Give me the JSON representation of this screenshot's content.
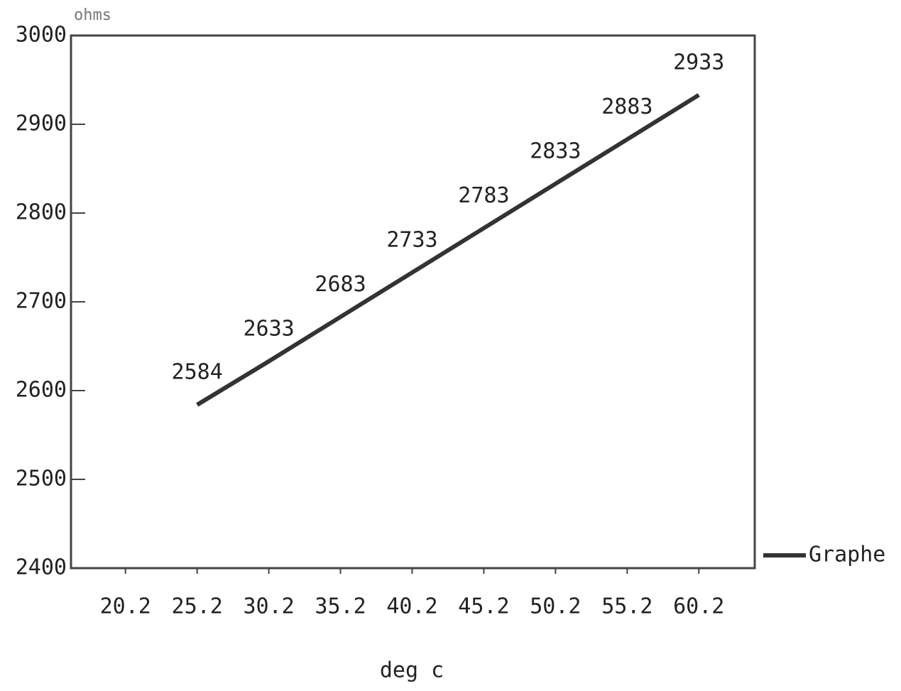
{
  "chart_data": {
    "type": "line",
    "y_label": "ohms",
    "x_label": "deg c",
    "x": [
      25.2,
      30.2,
      35.2,
      40.2,
      45.2,
      50.2,
      55.2,
      60.2
    ],
    "series": [
      {
        "name": "Graphe",
        "color": "#333333",
        "values": [
          2584,
          2633,
          2683,
          2733,
          2783,
          2833,
          2883,
          2933
        ]
      }
    ],
    "xlim": [
      16.4,
      64.1
    ],
    "xticks": [
      20.2,
      25.2,
      30.2,
      35.2,
      40.2,
      45.2,
      50.2,
      55.2,
      60.2
    ],
    "ylim": [
      2400,
      3000
    ],
    "yticks": [
      2400,
      2500,
      2600,
      2700,
      2800,
      2900,
      3000
    ],
    "legend": "right",
    "grid": false
  }
}
